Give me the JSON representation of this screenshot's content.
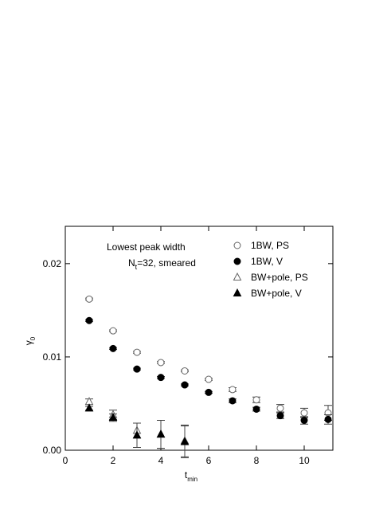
{
  "chart_data": {
    "type": "errorbar-scatter",
    "xlabel": "t",
    "xlabel_sub": "min",
    "ylabel": "γ",
    "ylabel_sub": "0",
    "annotations": [
      "Lowest peak width",
      "N",
      "t",
      "=32, smeared"
    ],
    "xlim": [
      0,
      11.2
    ],
    "ylim": [
      0,
      0.024
    ],
    "xticks": [
      0,
      2,
      4,
      6,
      8,
      10
    ],
    "yticks": [
      {
        "value": 0,
        "label": "0.00"
      },
      {
        "value": 0.01,
        "label": "0.01"
      },
      {
        "value": 0.02,
        "label": "0.02"
      }
    ],
    "legend": "top-right",
    "series": [
      {
        "name": "1BW, PS",
        "marker": "circle-open",
        "color": "#000000",
        "x": [
          1,
          2,
          3,
          4,
          5,
          6,
          7,
          8,
          9,
          10,
          11
        ],
        "values": [
          0.0162,
          0.0128,
          0.0105,
          0.0094,
          0.0085,
          0.0076,
          0.0065,
          0.0054,
          0.0045,
          0.004,
          0.004
        ],
        "errors": [
          0.0001,
          0.0001,
          0.0001,
          0.0001,
          0.0001,
          0.0001,
          0.0002,
          0.0003,
          0.0004,
          0.0005,
          0.0008
        ]
      },
      {
        "name": "1BW, V",
        "marker": "circle-filled",
        "color": "#000000",
        "x": [
          1,
          2,
          3,
          4,
          5,
          6,
          7,
          8,
          9,
          10,
          11
        ],
        "values": [
          0.0139,
          0.0109,
          0.0087,
          0.0078,
          0.007,
          0.0062,
          0.0053,
          0.0044,
          0.0037,
          0.0032,
          0.0033
        ],
        "errors": [
          0.0001,
          0.0001,
          0.0001,
          0.0001,
          0.0001,
          0.0001,
          0.0002,
          0.0002,
          0.0003,
          0.0004,
          0.0005
        ]
      },
      {
        "name": "BW+pole, PS",
        "marker": "triangle-open",
        "color": "#000000",
        "x": [
          1,
          2,
          3,
          4,
          5
        ],
        "values": [
          0.0052,
          0.0038,
          0.0021,
          0.0017,
          0.001
        ],
        "errors": [
          0.0003,
          0.0005,
          0.0008,
          0.0015,
          0.0017
        ]
      },
      {
        "name": "BW+pole, V",
        "marker": "triangle-filled",
        "color": "#000000",
        "x": [
          1,
          2,
          3,
          4,
          5
        ],
        "values": [
          0.0045,
          0.0035,
          0.0016,
          0.0017,
          0.0009
        ],
        "errors": [
          0.0002,
          0.0004,
          0.0013,
          0.0015,
          0.0017
        ]
      }
    ]
  }
}
